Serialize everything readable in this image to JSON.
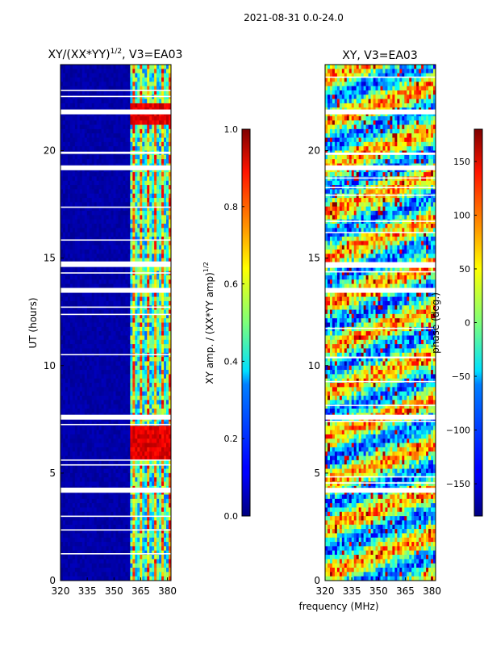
{
  "suptitle": "2021-08-31 0.0-24.0",
  "chart_data": [
    {
      "type": "heatmap",
      "title_text": "XY/(XX*YY)",
      "title_exponent": "1/2",
      "title_suffix": ", V3=EA03",
      "xlabel": "",
      "ylabel": "UT (hours)",
      "xlim": [
        320,
        382
      ],
      "ylim": [
        0,
        24
      ],
      "xticks": [
        320,
        335,
        350,
        365,
        380
      ],
      "yticks": [
        0,
        5,
        10,
        15,
        20
      ],
      "colormap": "jet",
      "colorbar": {
        "label_text": "XY amp. / (XX*YY amp)",
        "label_exponent": "1/2",
        "range": [
          0.0,
          1.0
        ],
        "ticks": [
          "0.0",
          "0.2",
          "0.4",
          "0.6",
          "0.8",
          "1.0"
        ]
      },
      "description_bands": [
        {
          "freq_range": [
            320,
            359
          ],
          "value": 0.02
        },
        {
          "freq_range": [
            360,
            382
          ],
          "value": 0.3
        }
      ],
      "flagged_hours": [
        4.2,
        7.6,
        13.5,
        14.7,
        19.2,
        21.8
      ]
    },
    {
      "type": "heatmap",
      "title_text": "XY, V3=EA03",
      "xlabel": "frequency (MHz)",
      "ylabel": "",
      "xlim": [
        320,
        382
      ],
      "ylim": [
        0,
        24
      ],
      "xticks": [
        320,
        335,
        350,
        365,
        380
      ],
      "yticks": [
        0,
        5,
        10,
        15,
        20
      ],
      "colormap": "jet",
      "colorbar": {
        "label_text": "phase (deg.)",
        "range": [
          -180,
          180
        ],
        "ticks": [
          "−150",
          "−100",
          "−50",
          "0",
          "50",
          "100",
          "150"
        ]
      },
      "flagged_hours": [
        4.2,
        7.6,
        13.5,
        14.7,
        19.2,
        21.8
      ]
    }
  ]
}
